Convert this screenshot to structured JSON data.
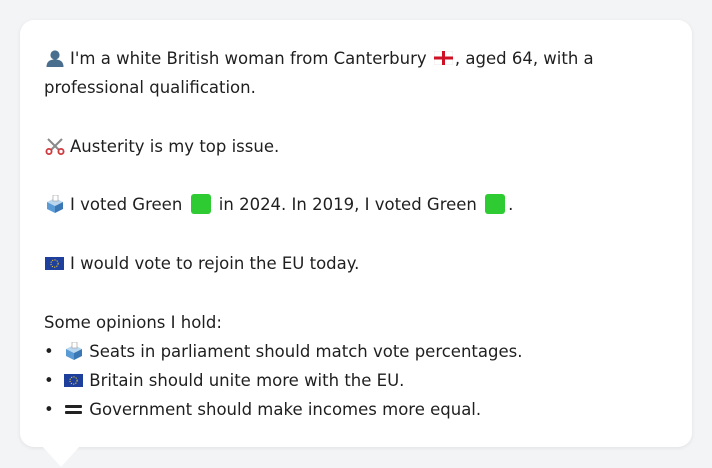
{
  "persona": {
    "intro_line1": "I'm a white British woman from Canterbury",
    "intro_line1_suffix": ", aged 64, with a",
    "intro_line2": "professional qualification.",
    "top_issue": "Austerity is my top issue.",
    "vote_part1": "I voted Green",
    "vote_part2": "in 2024. In 2019, I voted Green",
    "vote_part3": ".",
    "eu_stance": "I would vote to rejoin the EU today."
  },
  "opinions": {
    "heading": "Some opinions I hold:",
    "items": [
      {
        "icon": "ballot-box-icon",
        "text": "Seats in parliament should match vote percentages."
      },
      {
        "icon": "eu-flag-icon",
        "text": "Britain should unite more with the EU."
      },
      {
        "icon": "equals-icon",
        "text": "Government should make incomes more equal."
      }
    ]
  },
  "colors": {
    "card_background": "#ffffff",
    "page_background": "#f3f4f6",
    "green_square": "#2ecc32",
    "text": "#1f1f1f"
  }
}
